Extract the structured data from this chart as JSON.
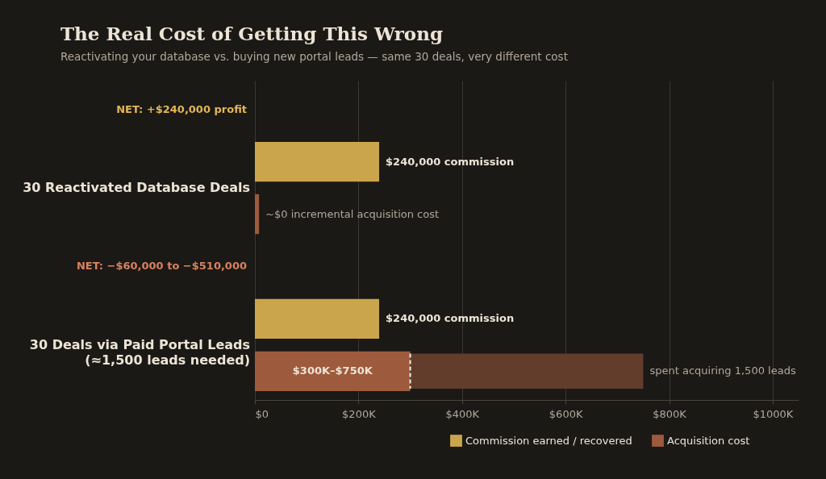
{
  "chart_data": {
    "type": "bar",
    "orientation": "horizontal",
    "title": "The Real Cost of Getting This Wrong",
    "subtitle": "Reactivating your database vs. buying new portal leads — same 30 deals, very different cost",
    "categories": [
      "30 Reactivated Database Deals",
      "30 Deals via Paid Portal Leads\n(≈1,500 leads needed)"
    ],
    "series": [
      {
        "name": "Commission earned / recovered",
        "color": "#cba54b",
        "values": [
          240000,
          240000
        ],
        "value_labels": [
          "$240,000 commission",
          "$240,000 commission"
        ]
      },
      {
        "name": "Acquisition cost",
        "color": "#9e5a3c",
        "values": [
          8000,
          300000
        ],
        "value_labels": [
          null,
          "$300K–$750K"
        ]
      },
      {
        "color": "#633d2c",
        "base": [
          null,
          300000
        ],
        "values": [
          null,
          450000
        ],
        "value_labels": [
          null,
          "spent acquiring 1,500 leads"
        ]
      }
    ],
    "annotations": [
      "NET: +$240,000 profit",
      "NET: −$60,000 to −$510,000",
      "~$0 incremental acquisition cost"
    ],
    "ref_lines": [
      {
        "axis": "x",
        "value": 300000,
        "color": "#f0e8dc",
        "line_style": "dashed"
      }
    ],
    "xlim": [
      0,
      1050000
    ],
    "xticks": [
      {
        "value": 0,
        "label": "$0"
      },
      {
        "value": 200000,
        "label": "$200K"
      },
      {
        "value": 400000,
        "label": "$400K"
      },
      {
        "value": 600000,
        "label": "$600K"
      },
      {
        "value": 800000,
        "label": "$800K"
      },
      {
        "value": 1000000,
        "label": "$1000K"
      }
    ],
    "grid": "x",
    "legend": "bottom right"
  }
}
